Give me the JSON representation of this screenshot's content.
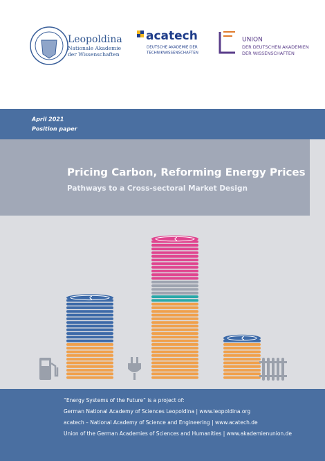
{
  "logos": {
    "leopoldina": {
      "name": "Leopoldina",
      "line1": "Nationale Akademie",
      "line2": "der Wissenschaften"
    },
    "acatech": {
      "name": "acatech",
      "line1": "DEUTSCHE AKADEMIE DER",
      "line2": "TECHNIKWISSENSCHAFTEN"
    },
    "union": {
      "name": "UNION",
      "line1": "DER DEUTSCHEN AKADEMIEN",
      "line2": "DER WISSENSCHAFTEN"
    }
  },
  "band": {
    "date": "April 2021",
    "kind": "Position paper"
  },
  "title": "Pricing Carbon, Reforming Energy Prices",
  "subtitle": "Pathways to a Cross-sectoral Market Design",
  "footer": [
    "“Energy Systems of the Future” is a project of:",
    "German National Academy of Sciences Leopoldina | www.leopoldina.org",
    "acatech – National Academy of Science and Engineering | www.acatech.de",
    "Union of the German Academies of Sciences and Humanities | www.akademienunion.de"
  ]
}
